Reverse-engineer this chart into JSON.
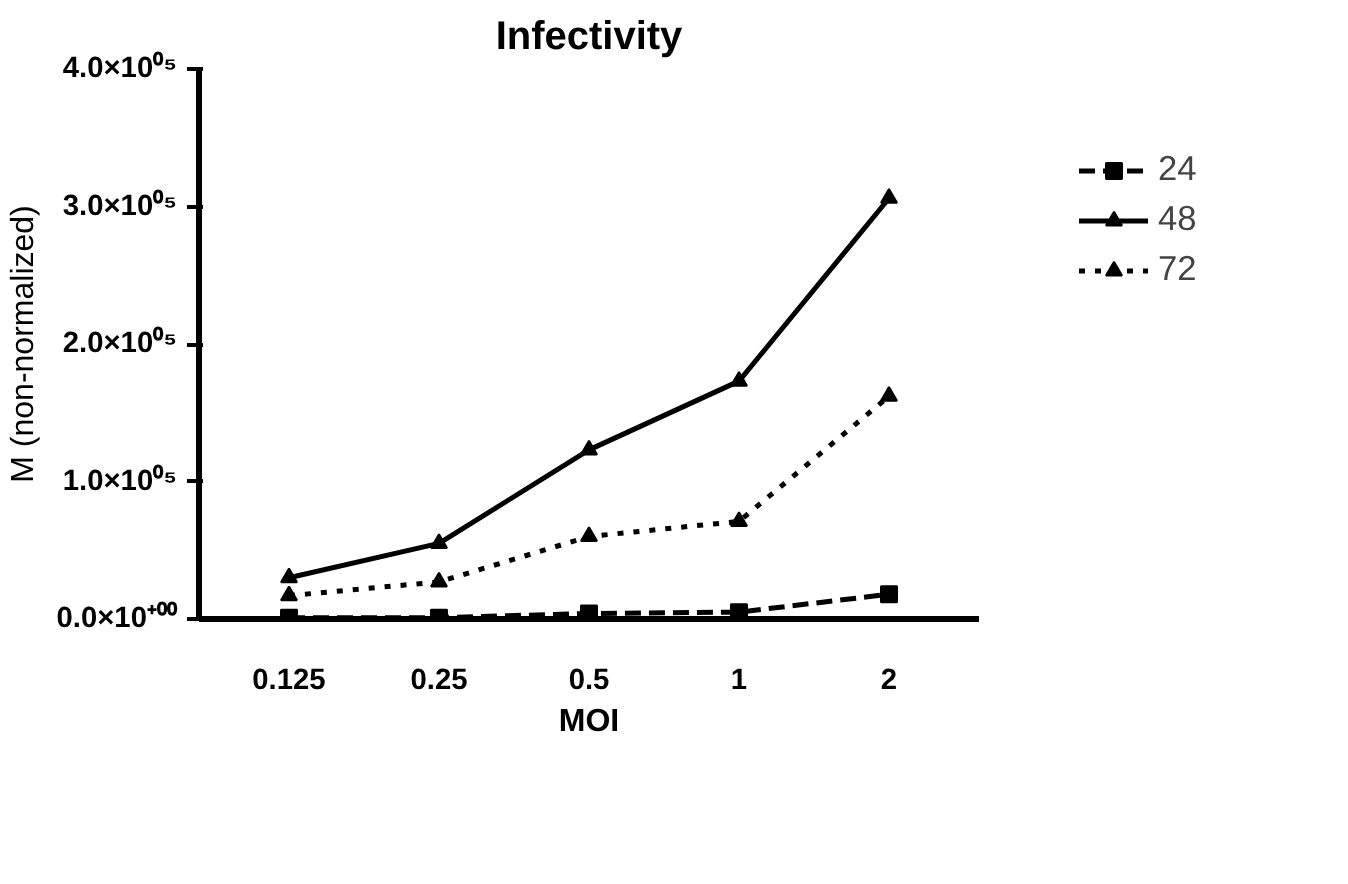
{
  "chart_data": {
    "type": "line",
    "title": "Infectivity",
    "xlabel": "MOI",
    "ylabel": "M (non-normalized)",
    "categories": [
      "0.125",
      "0.25",
      "0.5",
      "1",
      "2"
    ],
    "ylim": [
      0,
      400000
    ],
    "yticks": [
      {
        "value": 0,
        "label": "0.0×10⁺⁰⁰"
      },
      {
        "value": 100000,
        "label": "1.0×10⁰⁵"
      },
      {
        "value": 200000,
        "label": "2.0×10⁰⁵"
      },
      {
        "value": 300000,
        "label": "3.0×10⁰⁵"
      },
      {
        "value": 400000,
        "label": "4.0×10⁰⁵"
      }
    ],
    "grid": false,
    "legend": "right",
    "series": [
      {
        "name": "24",
        "color": "#000000",
        "marker": "square",
        "line_style": "dashed",
        "values": [
          1000,
          1000,
          4000,
          5000,
          18000
        ]
      },
      {
        "name": "48",
        "color": "#000000",
        "marker": "triangle",
        "line_style": "solid",
        "values": [
          30000,
          55000,
          123000,
          173000,
          306000
        ]
      },
      {
        "name": "72",
        "color": "#000000",
        "marker": "triangle",
        "line_style": "dotted",
        "values": [
          17000,
          27000,
          60000,
          71000,
          162000
        ]
      }
    ]
  }
}
